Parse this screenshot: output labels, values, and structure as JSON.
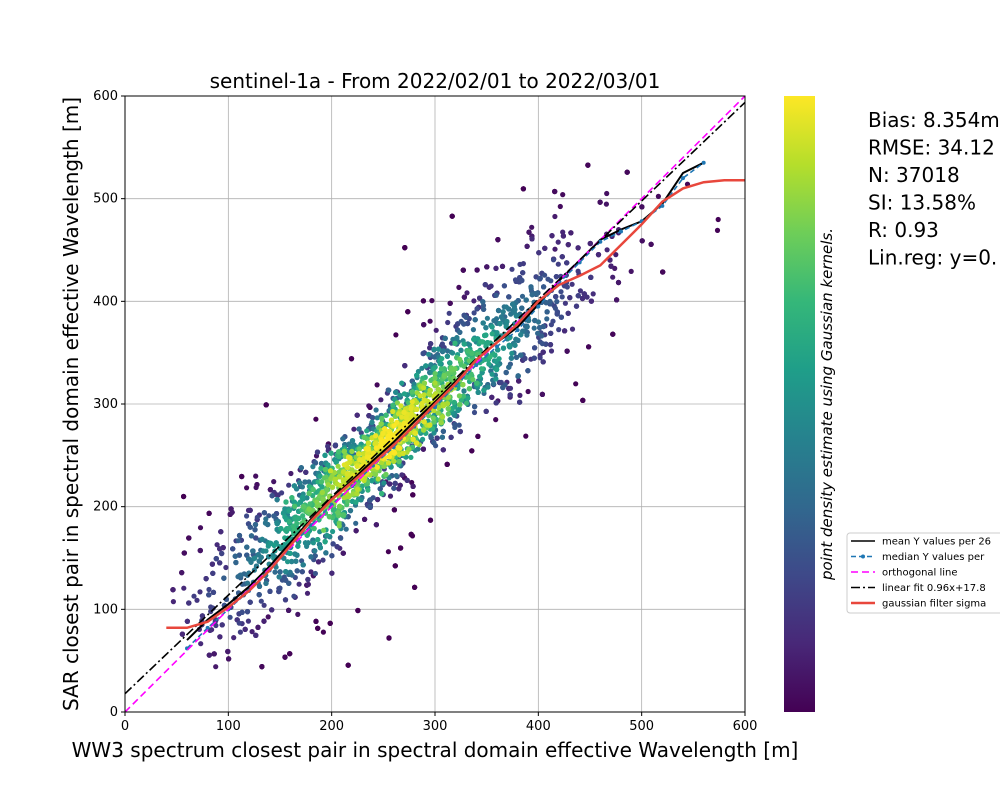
{
  "chart_data": {
    "type": "scatter",
    "title": "sentinel-1a - From 2022/02/01 to 2022/03/01",
    "xlabel": "WW3 spectrum closest pair in spectral domain effective Wavelength [m]",
    "ylabel": "SAR closest pair in spectral domain effective Wavelength [m]",
    "xlim": [
      0,
      600
    ],
    "ylim": [
      0,
      600
    ],
    "x_ticks": [
      "0",
      "100",
      "200",
      "300",
      "400",
      "500",
      "600"
    ],
    "y_ticks": [
      "0",
      "100",
      "200",
      "300",
      "400",
      "500",
      "600"
    ],
    "grid": true,
    "colorbar_label": "point density estimate using Gaussian kernels.",
    "colormap": [
      "#440154",
      "#482878",
      "#3e4989",
      "#31688e",
      "#26828e",
      "#1f9e89",
      "#35b779",
      "#6ece58",
      "#b5de2b",
      "#fde725"
    ],
    "stats": [
      "Bias: 8.354m",
      "RMSE: 34.12",
      "N: 37018",
      "SI: 13.58%",
      "R: 0.93",
      "Lin.reg: y=0."
    ],
    "legend_position": "center-right",
    "series": [
      {
        "name": "mean Y values per 26",
        "style": "solid",
        "color": "#000000",
        "x": [
          60,
          80,
          100,
          120,
          140,
          160,
          180,
          200,
          220,
          240,
          260,
          280,
          300,
          320,
          340,
          360,
          380,
          400,
          420,
          440,
          460,
          480,
          500,
          520,
          540,
          560
        ],
        "y": [
          70,
          90,
          105,
          122,
          142,
          165,
          188,
          208,
          226,
          245,
          263,
          283,
          302,
          322,
          343,
          360,
          375,
          397,
          420,
          440,
          460,
          470,
          478,
          495,
          525,
          535
        ]
      },
      {
        "name": "median Y values per",
        "style": "dashed-marker",
        "color": "#1f77b4",
        "x": [
          60,
          80,
          100,
          120,
          140,
          160,
          180,
          200,
          220,
          240,
          260,
          280,
          300,
          320,
          340,
          360,
          380,
          400,
          420,
          440,
          460,
          480,
          500,
          520,
          540,
          560
        ],
        "y": [
          62,
          82,
          100,
          118,
          138,
          160,
          182,
          202,
          220,
          240,
          258,
          278,
          297,
          318,
          338,
          356,
          372,
          395,
          418,
          438,
          458,
          468,
          478,
          493,
          520,
          535
        ]
      },
      {
        "name": "orthogonal line",
        "style": "dashed",
        "color": "#ff00ff",
        "x": [
          0,
          600
        ],
        "y": [
          0,
          600
        ]
      },
      {
        "name": "linear fit 0.96x+17.8",
        "style": "dashdot",
        "color": "#000000",
        "x": [
          0,
          600
        ],
        "y": [
          17.8,
          593.8
        ]
      },
      {
        "name": "gaussian filter sigma",
        "style": "solid",
        "color": "#e8473c",
        "x": [
          40,
          60,
          80,
          100,
          120,
          140,
          160,
          180,
          200,
          220,
          240,
          260,
          280,
          300,
          320,
          340,
          360,
          380,
          400,
          420,
          440,
          460,
          480,
          500,
          520,
          540,
          560,
          580,
          600
        ],
        "y": [
          82,
          82,
          88,
          102,
          118,
          138,
          162,
          186,
          207,
          224,
          242,
          260,
          279,
          300,
          320,
          343,
          360,
          378,
          400,
          416,
          425,
          435,
          455,
          475,
          497,
          510,
          516,
          518,
          518
        ]
      }
    ]
  }
}
